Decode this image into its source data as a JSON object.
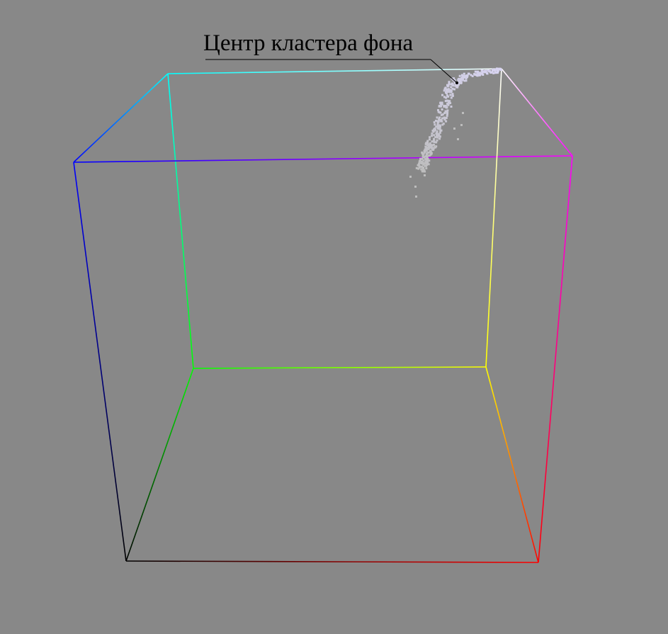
{
  "annotation": {
    "label": "Центр кластера фона"
  },
  "cube": {
    "corner_colors": {
      "black": "#000000",
      "red": "#ff0000",
      "green": "#00ff00",
      "blue": "#0000ff",
      "yellow": "#ffff00",
      "magenta": "#ff00ff",
      "cyan": "#00ffff",
      "white": "#ffffff"
    }
  },
  "cluster": {
    "color_top": "#d8d4f2",
    "color_bottom": "#bdbdbd"
  },
  "colors": {
    "background": "#888888",
    "annotation_text": "#000000"
  }
}
